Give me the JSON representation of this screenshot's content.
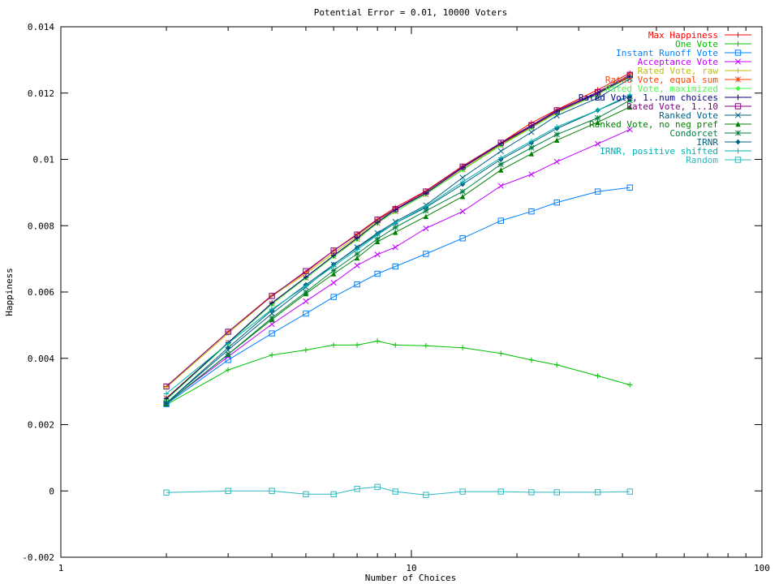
{
  "chart_data": {
    "type": "line",
    "title": "Potential Error = 0.01, 10000 Voters",
    "xlabel": "Number of Choices",
    "ylabel": "Happiness",
    "xscale": "log",
    "xlim": [
      1,
      100
    ],
    "ylim": [
      -0.002,
      0.014
    ],
    "xticks": [
      1,
      10,
      100
    ],
    "xtick_labels": [
      "1",
      "10",
      "100"
    ],
    "yticks": [
      -0.002,
      0,
      0.002,
      0.004,
      0.006,
      0.008,
      0.01,
      0.012,
      0.014
    ],
    "ytick_labels": [
      "-0.002",
      "0",
      "0.002",
      "0.004",
      "0.006",
      "0.008",
      "0.01",
      "0.012",
      "0.014"
    ],
    "grid": false,
    "legend_position": "top-right",
    "x": [
      2,
      3,
      4,
      5,
      6,
      7,
      8,
      9,
      11,
      14,
      18,
      22,
      26,
      34,
      42
    ],
    "series": [
      {
        "name": "Max Happiness",
        "color": "#ff0000",
        "marker": "plus",
        "values": [
          0.00315,
          0.0048,
          0.0059,
          0.0066,
          0.00725,
          0.00775,
          0.0082,
          0.00855,
          0.00905,
          0.0098,
          0.0105,
          0.0111,
          0.0115,
          0.0121,
          0.0126
        ]
      },
      {
        "name": "One Vote",
        "color": "#00c000",
        "marker": "plus",
        "values": [
          0.0026,
          0.00365,
          0.0041,
          0.00425,
          0.0044,
          0.0044,
          0.00452,
          0.0044,
          0.00438,
          0.00432,
          0.00415,
          0.00395,
          0.0038,
          0.00347,
          0.0032
        ]
      },
      {
        "name": "Instant Runoff Vote",
        "color": "#0080ff",
        "marker": "square",
        "values": [
          0.00262,
          0.00395,
          0.00475,
          0.00535,
          0.00585,
          0.00623,
          0.00655,
          0.00677,
          0.00715,
          0.00762,
          0.00815,
          0.00843,
          0.0087,
          0.00903,
          0.00915
        ]
      },
      {
        "name": "Acceptance Vote",
        "color": "#c000ff",
        "marker": "x",
        "values": [
          0.00265,
          0.00405,
          0.00503,
          0.00572,
          0.00628,
          0.0068,
          0.00713,
          0.00735,
          0.00792,
          0.00843,
          0.0092,
          0.00955,
          0.00993,
          0.01047,
          0.0109
        ]
      },
      {
        "name": "Rated Vote, raw",
        "color": "#c0c000",
        "marker": "plus",
        "values": [
          0.00312,
          0.00475,
          0.00588,
          0.00655,
          0.00718,
          0.00768,
          0.00815,
          0.00848,
          0.009,
          0.00975,
          0.01045,
          0.011,
          0.0114,
          0.012,
          0.01252
        ]
      },
      {
        "name": "Rated Vote, equal sum",
        "color": "#ff4000",
        "marker": "star",
        "values": [
          0.0028,
          0.00447,
          0.00565,
          0.00643,
          0.00708,
          0.0076,
          0.00808,
          0.00843,
          0.00895,
          0.0097,
          0.01043,
          0.01098,
          0.01142,
          0.01198,
          0.0125
        ]
      },
      {
        "name": "Rated Vote, maximized",
        "color": "#40ff40",
        "marker": "diamond",
        "values": [
          0.00275,
          0.00445,
          0.00563,
          0.00642,
          0.00707,
          0.00758,
          0.00808,
          0.00843,
          0.00895,
          0.00968,
          0.01042,
          0.01095,
          0.0114,
          0.01196,
          0.01248
        ]
      },
      {
        "name": "Rated Vote, 1..num choices",
        "color": "#000080",
        "marker": "plus",
        "values": [
          0.00278,
          0.00447,
          0.00567,
          0.00645,
          0.0071,
          0.00763,
          0.0081,
          0.00848,
          0.00898,
          0.00975,
          0.01048,
          0.011,
          0.01145,
          0.012,
          0.0125
        ]
      },
      {
        "name": "Rated Vote, 1..10",
        "color": "#800080",
        "marker": "square",
        "values": [
          0.00315,
          0.0048,
          0.00588,
          0.00663,
          0.00725,
          0.00773,
          0.00818,
          0.0085,
          0.00903,
          0.00978,
          0.0105,
          0.01103,
          0.01148,
          0.01203,
          0.01255
        ]
      },
      {
        "name": "Ranked Vote",
        "color": "#005f80",
        "marker": "x",
        "values": [
          0.00265,
          0.00425,
          0.00535,
          0.00615,
          0.00683,
          0.00735,
          0.00778,
          0.00812,
          0.00862,
          0.00945,
          0.01025,
          0.01082,
          0.01132,
          0.01185,
          0.01243
        ]
      },
      {
        "name": "Ranked Vote, no neg pref",
        "color": "#008000",
        "marker": "triangle",
        "values": [
          0.00263,
          0.00412,
          0.00517,
          0.00595,
          0.00655,
          0.00703,
          0.00752,
          0.0078,
          0.00828,
          0.00888,
          0.00968,
          0.01017,
          0.01058,
          0.01112,
          0.01158
        ]
      },
      {
        "name": "Condorcet",
        "color": "#008040",
        "marker": "star",
        "values": [
          0.00263,
          0.00412,
          0.00522,
          0.006,
          0.00665,
          0.00715,
          0.0076,
          0.00795,
          0.00845,
          0.00903,
          0.00985,
          0.01035,
          0.01075,
          0.01125,
          0.01178
        ]
      },
      {
        "name": "IRNR",
        "color": "#006080",
        "marker": "diamond",
        "values": [
          0.00265,
          0.00432,
          0.00545,
          0.00622,
          0.00683,
          0.00733,
          0.00775,
          0.00808,
          0.00855,
          0.00925,
          0.01,
          0.0105,
          0.01093,
          0.01148,
          0.0119
        ]
      },
      {
        "name": "IRNR, positive shifted",
        "color": "#00b0b0",
        "marker": "plus",
        "values": [
          0.00293,
          0.00445,
          0.00548,
          0.00618,
          0.00678,
          0.00728,
          0.00772,
          0.00808,
          0.00858,
          0.00932,
          0.01005,
          0.01055,
          0.01098,
          0.01148,
          0.01195
        ]
      },
      {
        "name": "Random",
        "color": "#30b8c0",
        "marker": "square",
        "values": [
          -5e-05,
          0.0,
          0.0,
          -0.0001,
          -0.0001,
          6e-05,
          0.00012,
          -2e-05,
          -0.00012,
          -2e-05,
          -2e-05,
          -4e-05,
          -4e-05,
          -4e-05,
          -2e-05
        ]
      }
    ]
  }
}
